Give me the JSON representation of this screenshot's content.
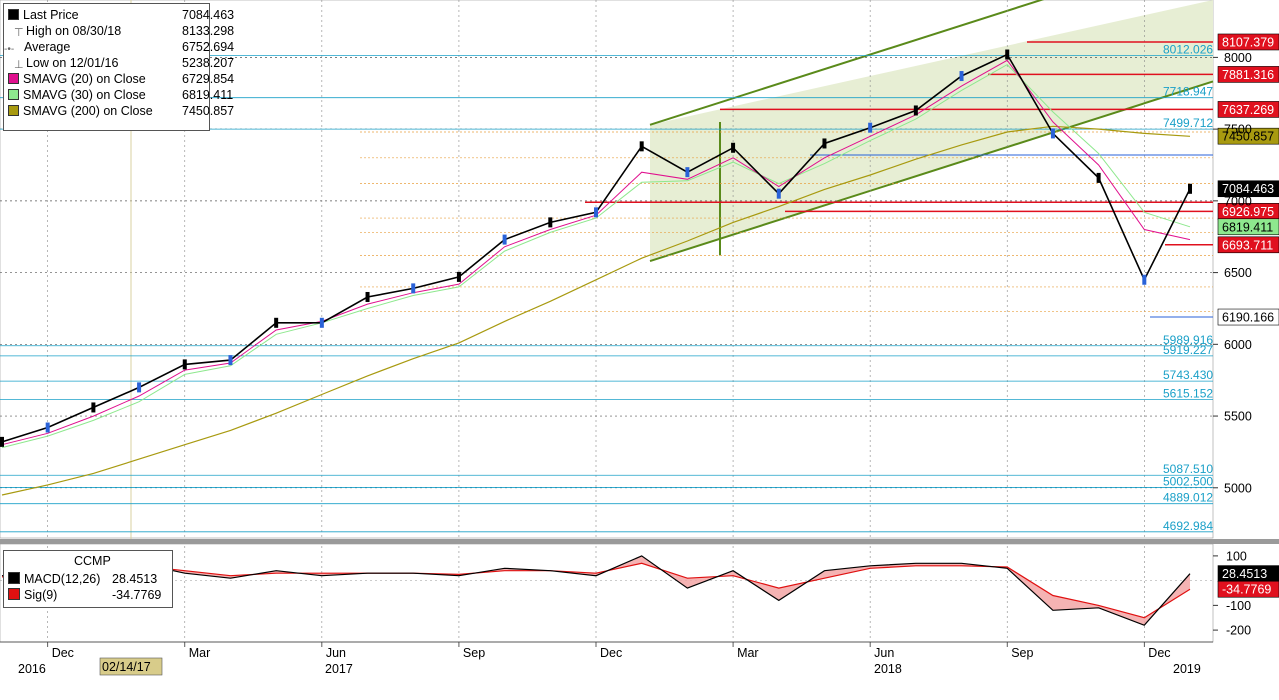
{
  "legend": {
    "items": [
      {
        "label": "Last Price",
        "value": "7084.463",
        "color": "#000000",
        "marker": "square"
      },
      {
        "label": "High on 08/30/18",
        "value": "8133.298",
        "color": "#666666",
        "marker": "high-tick"
      },
      {
        "label": "Average",
        "value": "6752.694",
        "color": "#666666",
        "marker": "average-line"
      },
      {
        "label": "Low on 12/01/16",
        "value": "5238.207",
        "color": "#666666",
        "marker": "low-tick"
      },
      {
        "label": "SMAVG (20)  on Close",
        "value": "6729.854",
        "color": "#e0108e",
        "marker": "square"
      },
      {
        "label": "SMAVG (30)  on Close",
        "value": "6819.411",
        "color": "#8ee88e",
        "marker": "square"
      },
      {
        "label": "SMAVG (200)  on Close",
        "value": "7450.857",
        "color": "#a89a10",
        "marker": "square"
      }
    ]
  },
  "macd_legend": {
    "title": "CCMP",
    "items": [
      {
        "label": "MACD(12,26)",
        "value": "28.4513",
        "color": "#000000"
      },
      {
        "label": "Sig(9)",
        "value": "-34.7769",
        "color": "#e01010"
      }
    ]
  },
  "price_axis": {
    "ticks": [
      "8000",
      "7500",
      "7000",
      "6500",
      "6000",
      "5500",
      "5000"
    ],
    "tick_values": [
      8000,
      7500,
      7000,
      6500,
      6000,
      5500,
      5000
    ]
  },
  "macd_axis": {
    "ticks": [
      "100",
      "-100",
      "-200"
    ],
    "tick_values": [
      100,
      -100,
      -200
    ]
  },
  "price_badges": [
    {
      "text": "8107.379",
      "value": 8107.379,
      "bg": "#e0101e",
      "fg": "#ffffff"
    },
    {
      "text": "7881.316",
      "value": 7881.316,
      "bg": "#e0101e",
      "fg": "#ffffff"
    },
    {
      "text": "7637.269",
      "value": 7637.269,
      "bg": "#e0101e",
      "fg": "#ffffff"
    },
    {
      "text": "7450.857",
      "value": 7450.857,
      "bg": "#a89a10",
      "fg": "#000000"
    },
    {
      "text": "7084.463",
      "value": 7084.463,
      "bg": "#000000",
      "fg": "#ffffff"
    },
    {
      "text": "6926.975",
      "value": 6926.975,
      "bg": "#e0101e",
      "fg": "#ffffff"
    },
    {
      "text": "6819.411",
      "value": 6819.411,
      "bg": "#8ee88e",
      "fg": "#000000"
    },
    {
      "text": "6693.711",
      "value": 6693.711,
      "bg": "#e0101e",
      "fg": "#ffffff"
    },
    {
      "text": "6190.166",
      "value": 6190.166,
      "bg": "#ffffff",
      "fg": "#000000"
    }
  ],
  "macd_badges": [
    {
      "text": "28.4513",
      "value": 28.4513,
      "bg": "#000000",
      "fg": "#ffffff"
    },
    {
      "text": "-34.7769",
      "value": -34.7769,
      "bg": "#e0101e",
      "fg": "#ffffff"
    }
  ],
  "fib_labels": [
    {
      "text": "8012.026",
      "value": 8012.026
    },
    {
      "text": "7718.947",
      "value": 7718.947
    },
    {
      "text": "7499.712",
      "value": 7499.712
    },
    {
      "text": "5989.916",
      "value": 5989.916
    },
    {
      "text": "5919.227",
      "value": 5919.227
    },
    {
      "text": "5743.430",
      "value": 5743.43
    },
    {
      "text": "5615.152",
      "value": 5615.152
    },
    {
      "text": "5087.510",
      "value": 5087.51
    },
    {
      "text": "5002.500",
      "value": 5002.5
    },
    {
      "text": "4889.012",
      "value": 4889.012
    },
    {
      "text": "4692.984",
      "value": 4692.984
    }
  ],
  "x_axis": {
    "months": [
      "Dec",
      "Mar",
      "Jun",
      "Sep",
      "Dec",
      "Mar",
      "Jun",
      "Sep",
      "Dec"
    ],
    "years": [
      "2016",
      "2017",
      "2018",
      "2019"
    ],
    "marker_date": "02/14/17"
  },
  "colors": {
    "price": "#000000",
    "sma20": "#e0108e",
    "sma30": "#8ee88e",
    "sma200": "#a89a10",
    "channel": "#5a8a1a",
    "channel_fill": "#e7eed4",
    "resistance": "#e0101e",
    "fib": "#1aa0c8",
    "fib_orange": "#e8a040",
    "macd": "#000000",
    "signal": "#e01010",
    "macd_fill": "#f2a0a0"
  },
  "chart_data": {
    "type": "line",
    "title": "CCMP",
    "xlabel": "",
    "ylabel": "",
    "ylim": [
      4650,
      8400
    ],
    "x": [
      "2016-11",
      "2016-12",
      "2017-01",
      "2017-02",
      "2017-03",
      "2017-04",
      "2017-05",
      "2017-06",
      "2017-07",
      "2017-08",
      "2017-09",
      "2017-10",
      "2017-11",
      "2017-12",
      "2018-01",
      "2018-02",
      "2018-03",
      "2018-04",
      "2018-05",
      "2018-06",
      "2018-07",
      "2018-08",
      "2018-09",
      "2018-10",
      "2018-11",
      "2018-12",
      "2019-01"
    ],
    "series": [
      {
        "name": "Last Price",
        "values": [
          5320,
          5420,
          5560,
          5700,
          5860,
          5890,
          6150,
          6150,
          6330,
          6390,
          6470,
          6730,
          6850,
          6920,
          7380,
          7200,
          7370,
          7050,
          7400,
          7510,
          7630,
          7870,
          8020,
          7470,
          7160,
          6450,
          7084
        ]
      },
      {
        "name": "SMAVG (20)  on Close",
        "values": [
          5300,
          5380,
          5500,
          5640,
          5820,
          5870,
          6100,
          6160,
          6280,
          6360,
          6420,
          6680,
          6800,
          6900,
          7200,
          7150,
          7300,
          7100,
          7300,
          7450,
          7600,
          7800,
          7980,
          7550,
          7250,
          6800,
          6730
        ]
      },
      {
        "name": "SMAVG (30)  on Close",
        "values": [
          5280,
          5360,
          5470,
          5600,
          5790,
          5850,
          6070,
          6150,
          6250,
          6340,
          6400,
          6650,
          6780,
          6880,
          7130,
          7140,
          7270,
          7120,
          7260,
          7420,
          7570,
          7770,
          7950,
          7620,
          7330,
          6920,
          6819
        ]
      },
      {
        "name": "SMAVG (200)  on Close",
        "values": [
          4950,
          5020,
          5100,
          5200,
          5300,
          5400,
          5520,
          5650,
          5780,
          5900,
          6010,
          6160,
          6300,
          6450,
          6600,
          6720,
          6850,
          6960,
          7080,
          7180,
          7290,
          7390,
          7480,
          7520,
          7500,
          7470,
          7450
        ]
      }
    ],
    "macd": {
      "series": [
        {
          "name": "MACD(12,26)",
          "values": [
            20,
            40,
            60,
            70,
            30,
            10,
            40,
            20,
            30,
            30,
            20,
            50,
            40,
            20,
            100,
            -30,
            40,
            -80,
            40,
            60,
            70,
            70,
            50,
            -120,
            -110,
            -180,
            28
          ]
        },
        {
          "name": "Sig(9)",
          "values": [
            15,
            30,
            50,
            60,
            40,
            20,
            30,
            30,
            30,
            30,
            25,
            40,
            40,
            30,
            70,
            10,
            20,
            -30,
            10,
            50,
            60,
            60,
            55,
            -60,
            -100,
            -150,
            -35
          ]
        }
      ],
      "ylim": [
        -240,
        140
      ]
    },
    "annotations": {
      "high": 8133.298,
      "high_date": "08/30/18",
      "average": 6752.694,
      "low": 5238.207,
      "low_date": "12/01/16",
      "channel": "ascending"
    }
  }
}
